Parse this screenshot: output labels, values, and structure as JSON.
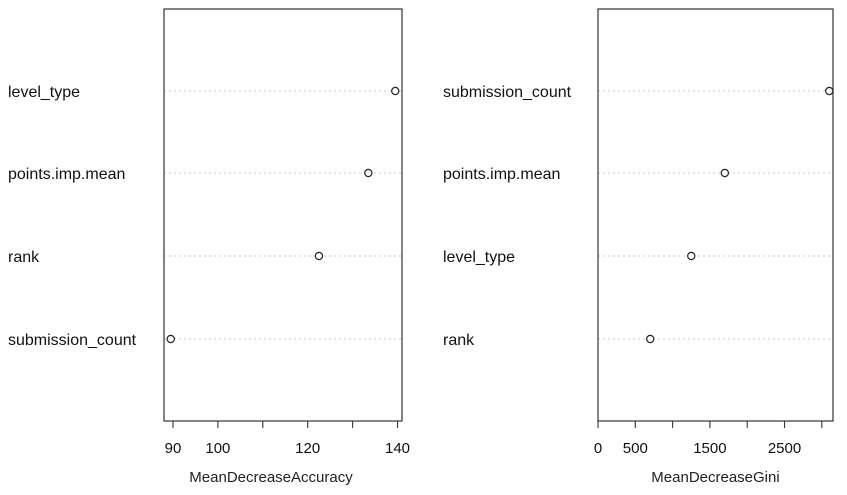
{
  "chart_data": [
    {
      "type": "scatter",
      "variant": "dotchart",
      "title": "",
      "xlabel": "MeanDecreaseAccuracy",
      "ylabel": "",
      "xlim": [
        88,
        141
      ],
      "xticks": [
        90,
        100,
        110,
        120,
        130,
        140
      ],
      "xtick_labels": [
        "90",
        "100",
        "",
        "120",
        "",
        "140"
      ],
      "categories": [
        "level_type",
        "points.imp.mean",
        "rank",
        "submission_count"
      ],
      "values": [
        139.5,
        133.5,
        122.5,
        89.5
      ],
      "grid": "dotted-horizontal",
      "legend": "none"
    },
    {
      "type": "scatter",
      "variant": "dotchart",
      "title": "",
      "xlabel": "MeanDecreaseGini",
      "ylabel": "",
      "xlim": [
        0,
        3150
      ],
      "xticks": [
        0,
        500,
        1000,
        1500,
        2000,
        2500,
        3000
      ],
      "xtick_labels": [
        "0",
        "500",
        "",
        "1500",
        "",
        "2500",
        ""
      ],
      "categories": [
        "submission_count",
        "points.imp.mean",
        "level_type",
        "rank"
      ],
      "values": [
        3100,
        1700,
        1250,
        700
      ],
      "grid": "dotted-horizontal",
      "legend": "none"
    }
  ],
  "colors": {
    "frame": "#333333",
    "point": "#222222",
    "grid": "#c8c8c8",
    "text": "#111111",
    "background": "#ffffff"
  }
}
